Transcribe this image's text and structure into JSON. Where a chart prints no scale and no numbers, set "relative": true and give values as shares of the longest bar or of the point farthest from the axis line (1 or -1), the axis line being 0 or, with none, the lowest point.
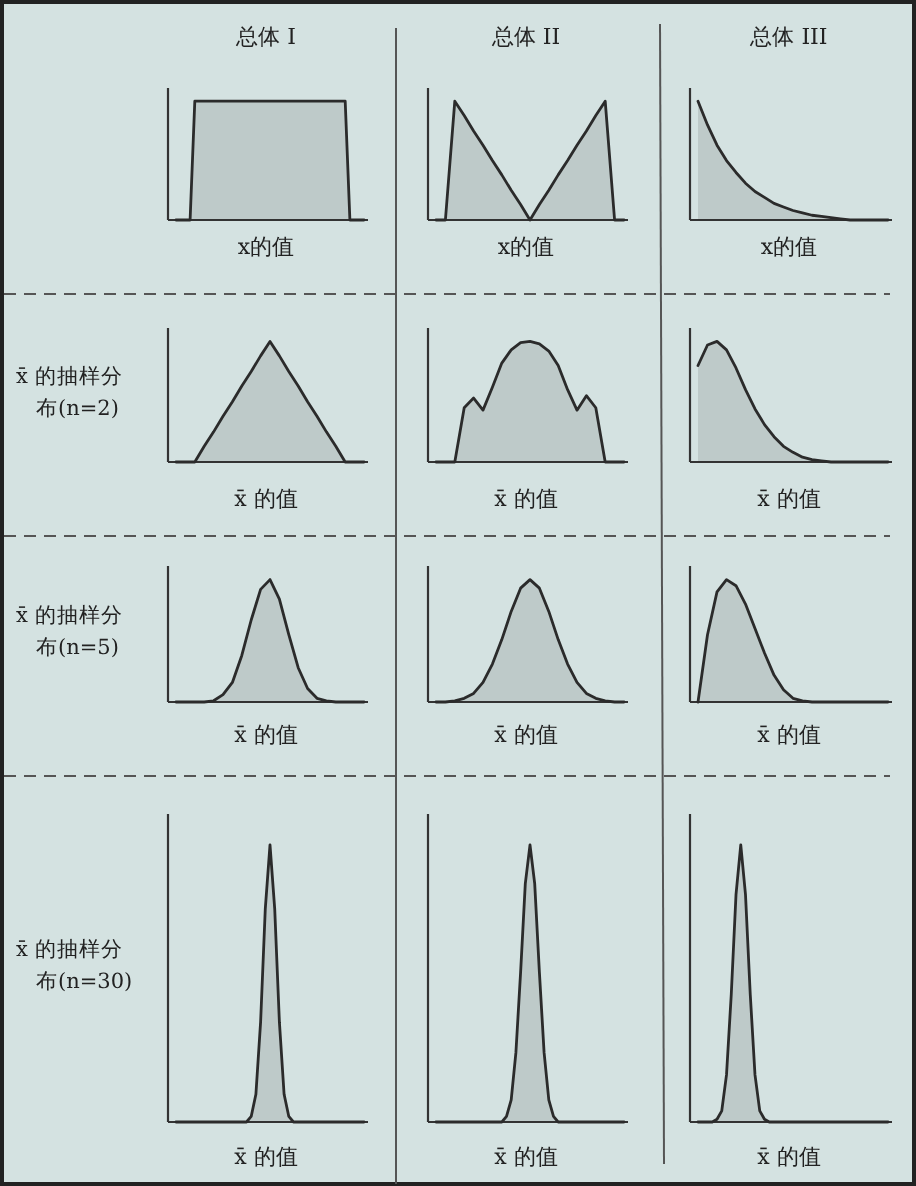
{
  "chart_data": [
    {
      "type": "area",
      "relative": true,
      "title": "总体 I",
      "xlabel": "x的值",
      "color": "#2b2b2b",
      "categories": [
        null,
        null,
        null,
        null,
        null,
        null,
        null,
        null,
        null,
        null,
        null,
        null,
        null,
        null,
        null,
        null,
        null,
        null,
        null,
        null,
        null,
        null,
        null,
        null,
        null,
        null,
        null,
        null,
        null,
        null,
        null,
        null,
        null,
        null,
        null,
        null,
        null,
        null,
        null,
        null,
        null
      ],
      "values": [
        0,
        0,
        0,
        0,
        1,
        1,
        1,
        1,
        1,
        1,
        1,
        1,
        1,
        1,
        1,
        1,
        1,
        1,
        1,
        1,
        1,
        1,
        1,
        1,
        1,
        1,
        1,
        1,
        1,
        1,
        1,
        1,
        1,
        1,
        1,
        1,
        1,
        0,
        0,
        0,
        0
      ]
    },
    {
      "type": "area",
      "relative": true,
      "title": "总体 II",
      "xlabel": "x的值",
      "color": "#2b2b2b",
      "categories": [
        null,
        null,
        null,
        null,
        null,
        null,
        null,
        null,
        null,
        null,
        null,
        null,
        null,
        null,
        null,
        null,
        null,
        null,
        null,
        null,
        null
      ],
      "values": [
        0,
        0,
        1,
        0.88,
        0.75,
        0.63,
        0.5,
        0.38,
        0.25,
        0.13,
        0,
        0.13,
        0.25,
        0.38,
        0.5,
        0.63,
        0.75,
        0.88,
        1,
        0,
        0
      ]
    },
    {
      "type": "area",
      "relative": true,
      "title": "总体 III",
      "xlabel": "x的值",
      "color": "#2b2b2b",
      "categories": [
        null,
        null,
        null,
        null,
        null,
        null,
        null,
        null,
        null,
        null,
        null,
        null,
        null,
        null,
        null,
        null,
        null,
        null,
        null,
        null,
        null
      ],
      "values": [
        1,
        0.8,
        0.63,
        0.5,
        0.4,
        0.31,
        0.24,
        0.19,
        0.14,
        0.11,
        0.08,
        0.06,
        0.04,
        0.03,
        0.02,
        0.01,
        0,
        0,
        0,
        0,
        0
      ]
    },
    {
      "type": "area",
      "relative": true,
      "ylabel": "x̄ 的抽样分布(n=2)",
      "xlabel": "x̄ 的值",
      "color": "#2b2b2b",
      "categories": [
        null,
        null,
        null,
        null,
        null,
        null,
        null,
        null,
        null,
        null,
        null,
        null,
        null,
        null,
        null,
        null,
        null,
        null,
        null,
        null,
        null
      ],
      "values": [
        0,
        0,
        0,
        0.13,
        0.25,
        0.38,
        0.5,
        0.63,
        0.75,
        0.88,
        1,
        0.88,
        0.75,
        0.63,
        0.5,
        0.38,
        0.25,
        0.13,
        0,
        0,
        0
      ]
    },
    {
      "type": "area",
      "relative": true,
      "xlabel": "x̄ 的值",
      "color": "#2b2b2b",
      "categories": [
        null,
        null,
        null,
        null,
        null,
        null,
        null,
        null,
        null,
        null,
        null,
        null,
        null,
        null,
        null,
        null,
        null,
        null,
        null,
        null,
        null
      ],
      "values": [
        0,
        0,
        0,
        0.45,
        0.53,
        0.43,
        0.62,
        0.82,
        0.93,
        0.99,
        1,
        0.98,
        0.92,
        0.8,
        0.6,
        0.43,
        0.55,
        0.45,
        0,
        0,
        0
      ]
    },
    {
      "type": "area",
      "relative": true,
      "xlabel": "x̄ 的值",
      "color": "#2b2b2b",
      "categories": [
        null,
        null,
        null,
        null,
        null,
        null,
        null,
        null,
        null,
        null,
        null,
        null,
        null,
        null,
        null,
        null,
        null,
        null,
        null,
        null,
        null
      ],
      "values": [
        0.8,
        0.97,
        1,
        0.93,
        0.78,
        0.6,
        0.44,
        0.31,
        0.21,
        0.13,
        0.08,
        0.04,
        0.02,
        0.01,
        0,
        0,
        0,
        0,
        0,
        0,
        0
      ]
    },
    {
      "type": "area",
      "relative": true,
      "ylabel": "x̄ 的抽样分布(n=5)",
      "xlabel": "x̄ 的值",
      "color": "#2b2b2b",
      "categories": [
        null,
        null,
        null,
        null,
        null,
        null,
        null,
        null,
        null,
        null,
        null,
        null,
        null,
        null,
        null,
        null,
        null,
        null,
        null,
        null,
        null
      ],
      "values": [
        0,
        0,
        0,
        0,
        0.01,
        0.06,
        0.16,
        0.38,
        0.67,
        0.92,
        1,
        0.84,
        0.55,
        0.28,
        0.11,
        0.03,
        0.01,
        0,
        0,
        0,
        0
      ]
    },
    {
      "type": "area",
      "relative": true,
      "xlabel": "x̄ 的值",
      "color": "#2b2b2b",
      "categories": [
        null,
        null,
        null,
        null,
        null,
        null,
        null,
        null,
        null,
        null,
        null,
        null,
        null,
        null,
        null,
        null,
        null,
        null,
        null,
        null,
        null
      ],
      "values": [
        0,
        0,
        0.01,
        0.03,
        0.07,
        0.16,
        0.31,
        0.51,
        0.74,
        0.93,
        1,
        0.93,
        0.74,
        0.51,
        0.31,
        0.16,
        0.07,
        0.03,
        0.01,
        0,
        0
      ]
    },
    {
      "type": "area",
      "relative": true,
      "xlabel": "x̄ 的值",
      "color": "#2b2b2b",
      "categories": [
        null,
        null,
        null,
        null,
        null,
        null,
        null,
        null,
        null,
        null,
        null,
        null,
        null,
        null,
        null,
        null,
        null,
        null,
        null,
        null,
        null
      ],
      "values": [
        0,
        0.55,
        0.9,
        1,
        0.95,
        0.8,
        0.6,
        0.4,
        0.22,
        0.1,
        0.03,
        0.01,
        0,
        0,
        0,
        0,
        0,
        0,
        0,
        0,
        0
      ]
    },
    {
      "type": "area",
      "relative": true,
      "ylabel": "x̄ 的抽样分布(n=30)",
      "xlabel": "x̄ 的值",
      "color": "#2b2b2b",
      "categories": [
        null,
        null,
        null,
        null,
        null,
        null,
        null,
        null,
        null,
        null,
        null,
        null,
        null,
        null,
        null,
        null,
        null,
        null,
        null,
        null,
        null,
        null,
        null,
        null,
        null,
        null,
        null,
        null,
        null,
        null,
        null,
        null,
        null,
        null,
        null,
        null,
        null,
        null,
        null,
        null,
        null
      ],
      "values": [
        0,
        0,
        0,
        0,
        0,
        0,
        0,
        0,
        0,
        0,
        0,
        0,
        0,
        0,
        0,
        0,
        0.02,
        0.1,
        0.36,
        0.77,
        1,
        0.77,
        0.36,
        0.1,
        0.02,
        0,
        0,
        0,
        0,
        0,
        0,
        0,
        0,
        0,
        0,
        0,
        0,
        0,
        0,
        0,
        0
      ]
    },
    {
      "type": "area",
      "relative": true,
      "xlabel": "x̄ 的值",
      "color": "#2b2b2b",
      "categories": [
        null,
        null,
        null,
        null,
        null,
        null,
        null,
        null,
        null,
        null,
        null,
        null,
        null,
        null,
        null,
        null,
        null,
        null,
        null,
        null,
        null,
        null,
        null,
        null,
        null,
        null,
        null,
        null,
        null,
        null,
        null,
        null,
        null,
        null,
        null,
        null,
        null,
        null,
        null,
        null,
        null
      ],
      "values": [
        0,
        0,
        0,
        0,
        0,
        0,
        0,
        0,
        0,
        0,
        0,
        0,
        0,
        0,
        0,
        0.02,
        0.08,
        0.25,
        0.54,
        0.86,
        1,
        0.86,
        0.54,
        0.25,
        0.08,
        0.02,
        0,
        0,
        0,
        0,
        0,
        0,
        0,
        0,
        0,
        0,
        0,
        0,
        0,
        0,
        0
      ]
    },
    {
      "type": "area",
      "relative": true,
      "xlabel": "x̄ 的值",
      "color": "#2b2b2b",
      "categories": [
        null,
        null,
        null,
        null,
        null,
        null,
        null,
        null,
        null,
        null,
        null,
        null,
        null,
        null,
        null,
        null,
        null,
        null,
        null,
        null,
        null,
        null,
        null,
        null,
        null,
        null,
        null,
        null,
        null,
        null,
        null,
        null,
        null,
        null,
        null,
        null,
        null,
        null,
        null,
        null,
        null
      ],
      "values": [
        0,
        0,
        0,
        0,
        0.01,
        0.04,
        0.17,
        0.46,
        0.82,
        1,
        0.82,
        0.46,
        0.17,
        0.04,
        0.01,
        0,
        0,
        0,
        0,
        0,
        0,
        0,
        0,
        0,
        0,
        0,
        0,
        0,
        0,
        0,
        0,
        0,
        0,
        0,
        0,
        0,
        0,
        0,
        0,
        0,
        0
      ]
    }
  ]
}
